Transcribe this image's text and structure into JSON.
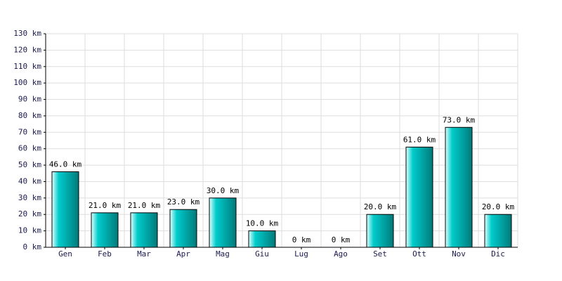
{
  "chart_data": {
    "type": "bar",
    "categories": [
      "Gen",
      "Feb",
      "Mar",
      "Apr",
      "Mag",
      "Giu",
      "Lug",
      "Ago",
      "Set",
      "Ott",
      "Nov",
      "Dic"
    ],
    "values": [
      46,
      21,
      21,
      23,
      30,
      10,
      0,
      0,
      20,
      61,
      73,
      20
    ],
    "value_labels": [
      "46.0 km",
      "21.0 km",
      "21.0 km",
      "23.0 km",
      "30.0 km",
      "10.0 km",
      "0 km",
      "0 km",
      "20.0 km",
      "61.0 km",
      "73.0 km",
      "20.0 km"
    ],
    "color": "#00cccc",
    "ylim": [
      0,
      130
    ],
    "yticks": [
      {
        "value": 0,
        "label": "0 km"
      },
      {
        "value": 10,
        "label": "10 km"
      },
      {
        "value": 20,
        "label": "20 km"
      },
      {
        "value": 30,
        "label": "30 km"
      },
      {
        "value": 40,
        "label": "40 km"
      },
      {
        "value": 50,
        "label": "50 km"
      },
      {
        "value": 60,
        "label": "60 km"
      },
      {
        "value": 70,
        "label": "70 km"
      },
      {
        "value": 80,
        "label": "80 km"
      },
      {
        "value": 90,
        "label": "90 km"
      },
      {
        "value": 100,
        "label": "100 km"
      },
      {
        "value": 110,
        "label": "110 km"
      },
      {
        "value": 120,
        "label": "120 km"
      },
      {
        "value": 130,
        "label": "130 km"
      }
    ],
    "grid": true
  }
}
